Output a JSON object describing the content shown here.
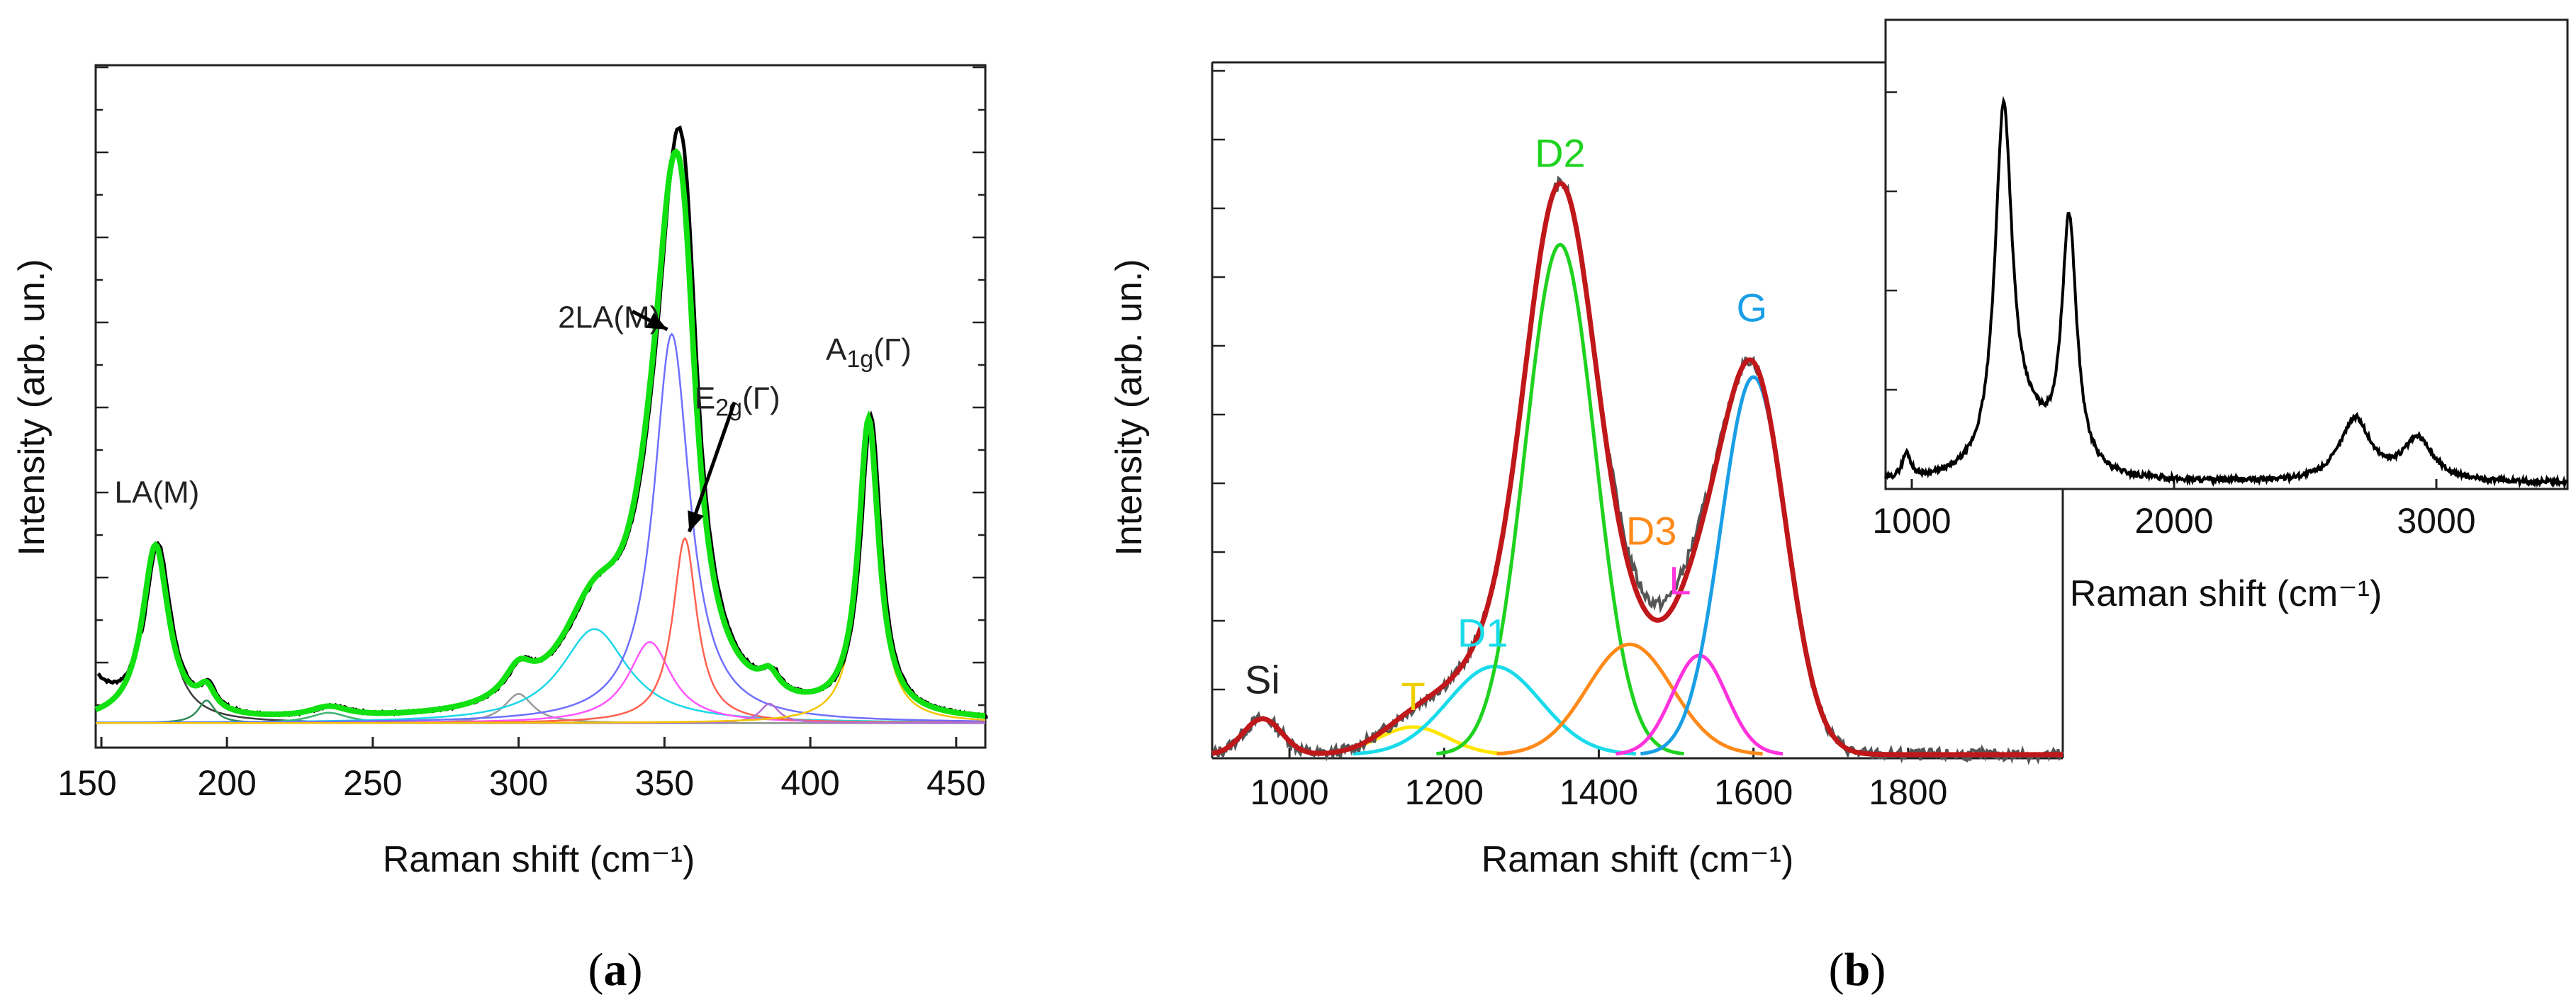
{
  "chart_data": [
    {
      "panel": "a",
      "type": "line",
      "panel_label": "a",
      "xlabel": "Raman shift  (cm⁻¹)",
      "ylabel": "Intensity (arb. un.)",
      "xlim": [
        155,
        460
      ],
      "ylim": [
        0,
        1.0
      ],
      "xticks": [
        "150",
        "200",
        "250",
        "300",
        "350",
        "400",
        "450"
      ],
      "xtick_values": [
        150,
        200,
        250,
        300,
        350,
        400,
        450
      ],
      "baseline": 0.005,
      "components": [
        {
          "name": "LA(M) component",
          "color": "#3a3a3a",
          "center": 175.5,
          "amp": 0.27,
          "width": 5.5
        },
        {
          "name": "193 component",
          "color": "#2e8b57",
          "center": 193,
          "amp": 0.035,
          "width": 3.5
        },
        {
          "name": "235 component",
          "color": "#3cb371",
          "center": 235,
          "amp": 0.016,
          "width": 8
        },
        {
          "name": "300 component",
          "color": "#999999",
          "center": 300,
          "amp": 0.045,
          "width": 6
        },
        {
          "name": "326 component",
          "color": "#19d7e6",
          "center": 326,
          "amp": 0.145,
          "width": 14
        },
        {
          "name": "345 component",
          "color": "#ff55ff",
          "center": 345,
          "amp": 0.125,
          "width": 9
        },
        {
          "name": "2LA(M) component",
          "color": "#6f6fff",
          "center": 352.5,
          "amp": 0.6,
          "width": 7.5
        },
        {
          "name": "E2g component",
          "color": "#ff6050",
          "center": 357,
          "amp": 0.285,
          "width": 5
        },
        {
          "name": "386 component",
          "color": "#b66fd6",
          "center": 386,
          "amp": 0.03,
          "width": 4
        },
        {
          "name": "A1g component",
          "color": "#f2c500",
          "center": 420,
          "amp": 0.455,
          "width": 4.2
        }
      ],
      "envelope_colors": {
        "measured": "#000000",
        "fit": "#11e011"
      },
      "labels": [
        {
          "text": "LA(M)",
          "x": 176,
          "y": 0.345
        },
        {
          "text": "2LA(M)",
          "x": 331,
          "y": 0.615
        },
        {
          "text": "E2g(Γ)",
          "x": 375,
          "y": 0.49,
          "main": "E",
          "sub": "2g",
          "suffix": "(Γ)"
        },
        {
          "text": "A1g(Γ)",
          "x": 420,
          "y": 0.565,
          "main": "A",
          "sub": "1g",
          "suffix": "(Γ)"
        }
      ],
      "arrows": [
        {
          "from_x": 339,
          "from_y": 0.64,
          "to_x": 351,
          "to_y": 0.612
        },
        {
          "from_x": 374,
          "from_y": 0.5,
          "to_x": 358.5,
          "to_y": 0.3
        }
      ]
    },
    {
      "panel": "b",
      "type": "line",
      "panel_label": "b",
      "xlabel": "Raman shift  (cm⁻¹)",
      "ylabel": "Intensity (arb. un.)",
      "xlim": [
        900,
        2000
      ],
      "ylim": [
        0,
        1.0
      ],
      "xticks": [
        "1000",
        "1200",
        "1400",
        "1600",
        "1800"
      ],
      "xtick_values": [
        1000,
        1200,
        1400,
        1600,
        1800
      ],
      "baseline": 0.004,
      "components": [
        {
          "name": "Si",
          "color": "#c0171a",
          "center": 965,
          "amp": 0.065,
          "width": 25
        },
        {
          "name": "T",
          "color": "#ffe600",
          "center": 1160,
          "amp": 0.05,
          "width": 45
        },
        {
          "name": "D1",
          "color": "#19dbea",
          "center": 1265,
          "amp": 0.16,
          "width": 60
        },
        {
          "name": "D2",
          "color": "#1fd21f",
          "center": 1350,
          "amp": 0.925,
          "width": 45
        },
        {
          "name": "D3",
          "color": "#ff8a1a",
          "center": 1440,
          "amp": 0.2,
          "width": 55
        },
        {
          "name": "L",
          "color": "#ff33dd",
          "center": 1530,
          "amp": 0.18,
          "width": 35
        },
        {
          "name": "G",
          "color": "#1a9fe6",
          "center": 1600,
          "amp": 0.685,
          "width": 42
        }
      ],
      "envelope_colors": {
        "measured": "#555555",
        "fit": "#c0171a"
      },
      "labels": [
        {
          "text": "Si",
          "x": 965,
          "y": 0.115,
          "color": "#222222"
        },
        {
          "text": "T",
          "x": 1160,
          "y": 0.085,
          "color": "#f0cf00"
        },
        {
          "text": "D1",
          "x": 1250,
          "y": 0.2,
          "color": "#19dbea"
        },
        {
          "text": "D2",
          "x": 1350,
          "y": 1.07,
          "color": "#1fd21f"
        },
        {
          "text": "D3",
          "x": 1468,
          "y": 0.385,
          "color": "#ff8a1a"
        },
        {
          "text": "L",
          "x": 1505,
          "y": 0.295,
          "color": "#ff33dd"
        },
        {
          "text": "G",
          "x": 1598,
          "y": 0.79,
          "color": "#1a9fe6"
        }
      ]
    },
    {
      "panel": "b-inset",
      "type": "line",
      "xlabel": "Raman shift  (cm⁻¹)",
      "xlim": [
        900,
        3500
      ],
      "ylim": [
        0,
        1.0
      ],
      "xticks": [
        "1000",
        "2000",
        "3000"
      ],
      "xtick_values": [
        1000,
        2000,
        3000
      ],
      "baseline": 0.03,
      "series_color": "#000000",
      "components": [
        {
          "center": 980,
          "amp": 0.06,
          "width": 20
        },
        {
          "center": 1350,
          "amp": 0.86,
          "width": 40
        },
        {
          "center": 1450,
          "amp": 0.09,
          "width": 90
        },
        {
          "center": 1600,
          "amp": 0.6,
          "width": 35
        },
        {
          "center": 2690,
          "amp": 0.15,
          "width": 70
        },
        {
          "center": 2930,
          "amp": 0.1,
          "width": 70
        }
      ]
    }
  ],
  "panel_labels": {
    "a": "(a)",
    "b": "(b)"
  }
}
